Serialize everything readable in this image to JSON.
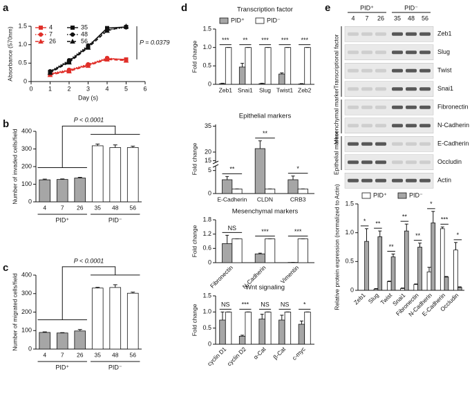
{
  "chart_data": [
    {
      "type": "line",
      "panel": "a",
      "xlabel": "Day (s)",
      "ylabel": "Absorbance (570nm)",
      "x": [
        1,
        2,
        3,
        4,
        5
      ],
      "xlim": [
        0,
        6
      ],
      "xticks": [
        0,
        1,
        2,
        3,
        4,
        5,
        6
      ],
      "ylim": [
        0,
        1.5
      ],
      "yticks": [
        0,
        0.5,
        {
          "value": 1,
          "label": "1.0"
        },
        1.5
      ],
      "legend": "top-left",
      "annotation": "P = 0.0379",
      "series": [
        {
          "name": "4",
          "color": "#e0302a",
          "linestyle": "solid",
          "marker": "square",
          "values": [
            0.2,
            0.3,
            0.45,
            0.62,
            0.6
          ]
        },
        {
          "name": "7",
          "color": "#e0302a",
          "linestyle": "dotted",
          "marker": "circle",
          "values": [
            0.22,
            0.32,
            0.47,
            0.64,
            0.58
          ]
        },
        {
          "name": "26",
          "color": "#e0302a",
          "linestyle": "dashed",
          "marker": "triangle",
          "values": [
            0.18,
            0.28,
            0.43,
            0.6,
            0.57
          ]
        },
        {
          "name": "35",
          "color": "#111111",
          "linestyle": "solid",
          "marker": "square",
          "values": [
            0.26,
            0.55,
            0.95,
            1.45,
            1.48
          ]
        },
        {
          "name": "48",
          "color": "#111111",
          "linestyle": "dotted",
          "marker": "circle",
          "values": [
            0.28,
            0.58,
            0.98,
            1.4,
            1.47
          ]
        },
        {
          "name": "56",
          "color": "#111111",
          "linestyle": "dashed",
          "marker": "triangle",
          "values": [
            0.24,
            0.52,
            0.92,
            1.38,
            1.5
          ]
        }
      ]
    },
    {
      "type": "bar",
      "panel": "b",
      "ylabel": "Number of invaded cells/field",
      "categories": [
        "4",
        "7",
        "26",
        "35",
        "48",
        "56"
      ],
      "values": [
        125,
        127,
        135,
        318,
        308,
        308
      ],
      "errors": [
        4,
        3,
        4,
        10,
        15,
        8
      ],
      "colors": [
        "#a6a6a6",
        "#a6a6a6",
        "#a6a6a6",
        "#ffffff",
        "#ffffff",
        "#ffffff"
      ],
      "ylim": [
        0,
        400
      ],
      "yticks": [
        0,
        100,
        200,
        300,
        400
      ],
      "groups": [
        {
          "label": "PID⁺",
          "categories": [
            "4",
            "7",
            "26"
          ]
        },
        {
          "label": "PID⁻",
          "categories": [
            "35",
            "48",
            "56"
          ]
        }
      ],
      "annotation": "P < 0.0001"
    },
    {
      "type": "bar",
      "panel": "c",
      "ylabel": "Number of migrated cells/field",
      "categories": [
        "4",
        "7",
        "26",
        "35",
        "48",
        "56"
      ],
      "values": [
        90,
        87,
        98,
        330,
        333,
        302
      ],
      "errors": [
        3,
        2,
        8,
        4,
        15,
        6
      ],
      "colors": [
        "#a6a6a6",
        "#a6a6a6",
        "#a6a6a6",
        "#ffffff",
        "#ffffff",
        "#ffffff"
      ],
      "ylim": [
        0,
        400
      ],
      "yticks": [
        0,
        100,
        200,
        300,
        400
      ],
      "groups": [
        {
          "label": "PID⁺",
          "categories": [
            "4",
            "7",
            "26"
          ]
        },
        {
          "label": "PID⁻",
          "categories": [
            "35",
            "48",
            "56"
          ]
        }
      ],
      "annotation": "P < 0.0001"
    },
    {
      "type": "bar",
      "panel": "d",
      "title": "Transcription factor",
      "ylabel": "Fold change",
      "legend": true,
      "categories": [
        "Zeb1",
        "Snai1",
        "Slug",
        "Twist1",
        "Zeb2"
      ],
      "series": [
        {
          "name": "PID⁺",
          "color": "#a6a6a6",
          "values": [
            0.02,
            0.47,
            0.02,
            0.28,
            0.01
          ],
          "errors": [
            0.01,
            0.1,
            0.01,
            0.03,
            0.01
          ]
        },
        {
          "name": "PID⁻",
          "color": "#ffffff",
          "values": [
            1,
            1,
            1,
            1,
            1
          ],
          "errors": [
            0,
            0,
            0,
            0,
            0
          ]
        }
      ],
      "significance": [
        "***",
        "**",
        "***",
        "***",
        "***"
      ],
      "ylim": [
        0,
        1.5
      ],
      "yticks": [
        0,
        0.5,
        {
          "value": 1,
          "label": "1.0"
        },
        1.5
      ]
    },
    {
      "type": "bar",
      "title": "Epithelial markers",
      "ylabel": "Fold change",
      "categories": [
        "E-Cadherin",
        "CLDN",
        "CRB3"
      ],
      "series": [
        {
          "name": "PID⁺",
          "color": "#a6a6a6",
          "values": [
            3,
            22,
            3
          ],
          "errors": [
            0.7,
            4.5,
            0.8
          ]
        },
        {
          "name": "PID⁻",
          "color": "#ffffff",
          "values": [
            1,
            1,
            1
          ],
          "errors": [
            0,
            0,
            0
          ]
        }
      ],
      "significance": [
        "**",
        "**",
        "*"
      ],
      "ylim": [
        0,
        36
      ],
      "ybreak": [
        6,
        14
      ],
      "yticks": [
        0,
        5,
        15,
        20,
        35
      ]
    },
    {
      "type": "bar",
      "title": "Mesenchymal markers",
      "ylabel": "Fold change",
      "categories": [
        "Fibronectin",
        "N-Cadherin",
        "Vimentin"
      ],
      "series": [
        {
          "name": "PID⁺",
          "color": "#a6a6a6",
          "values": [
            0.8,
            0.37,
            0.01
          ],
          "errors": [
            0.35,
            0.03,
            0
          ]
        },
        {
          "name": "PID⁻",
          "color": "#ffffff",
          "values": [
            1,
            1,
            1
          ],
          "errors": [
            0,
            0,
            0
          ]
        }
      ],
      "significance": [
        "NS",
        "***",
        "***"
      ],
      "ylim": [
        0,
        1.8
      ],
      "yticks": [
        0,
        0.6,
        1.2,
        1.8
      ]
    },
    {
      "type": "bar",
      "title": "Wnt signaling",
      "ylabel": "Fold change",
      "categories": [
        "cyclin D1",
        "cyclin D2",
        "α-Cat",
        "β-Cat",
        "c-myc"
      ],
      "series": [
        {
          "name": "PID⁺",
          "color": "#a6a6a6",
          "values": [
            0.75,
            0.25,
            0.78,
            0.75,
            0.62
          ],
          "errors": [
            0.25,
            0.03,
            0.15,
            0.15,
            0.1
          ]
        },
        {
          "name": "PID⁻",
          "color": "#ffffff",
          "values": [
            1,
            1,
            1,
            1,
            1
          ],
          "errors": [
            0,
            0,
            0,
            0,
            0
          ]
        }
      ],
      "significance": [
        "NS",
        "***",
        "NS",
        "NS",
        "*"
      ],
      "ylim": [
        0,
        1.5
      ],
      "yticks": [
        0,
        0.5,
        {
          "value": 1,
          "label": "1.0"
        },
        1.5
      ]
    },
    {
      "type": "bar",
      "panel": "e",
      "ylabel": "Relative protein expression (normalized to Actin)",
      "legend": true,
      "categories": [
        "Zeb1",
        "Slug",
        "Twist",
        "Snai1",
        "Fibronectin",
        "N-Cadherin",
        "E-Cadherin",
        "Occludin"
      ],
      "series": [
        {
          "name": "PID⁺",
          "color": "#ffffff",
          "values": [
            0,
            0.02,
            0.15,
            0.03,
            0.1,
            0.32,
            1.07,
            0.7
          ],
          "errors": [
            0,
            0.01,
            0.01,
            0.01,
            0.01,
            0.08,
            0.03,
            0.13
          ]
        },
        {
          "name": "PID⁻",
          "color": "#a6a6a6",
          "values": [
            0.85,
            0.93,
            0.58,
            1.03,
            0.75,
            1.17,
            0.23,
            0.05
          ],
          "errors": [
            0.22,
            0.1,
            0.05,
            0.12,
            0.07,
            0.2,
            0.01,
            0.01
          ]
        }
      ],
      "significance": [
        "*",
        "**",
        "**",
        "**",
        "**",
        "*",
        "***",
        "*"
      ],
      "ylim": [
        0,
        1.5
      ],
      "yticks": [
        0,
        0.5,
        {
          "value": 1,
          "label": "1.0"
        },
        1.5
      ]
    }
  ],
  "blot": {
    "headers": [
      {
        "label": "PID⁺",
        "lanes": [
          "4",
          "7",
          "26"
        ]
      },
      {
        "label": "PID⁻",
        "lanes": [
          "35",
          "48",
          "56"
        ]
      }
    ],
    "groups": [
      {
        "label": "Transcriptional factor",
        "rows": [
          "Zeb1",
          "Slug",
          "Twist",
          "Snai1"
        ]
      },
      {
        "label": "Mesenchymal marker",
        "rows": [
          "Fibronectin",
          "N-Cadherin"
        ]
      },
      {
        "label": "Epithelial marker",
        "rows": [
          "E-Cadherin",
          "Occludin"
        ]
      }
    ],
    "loading": "Actin"
  }
}
